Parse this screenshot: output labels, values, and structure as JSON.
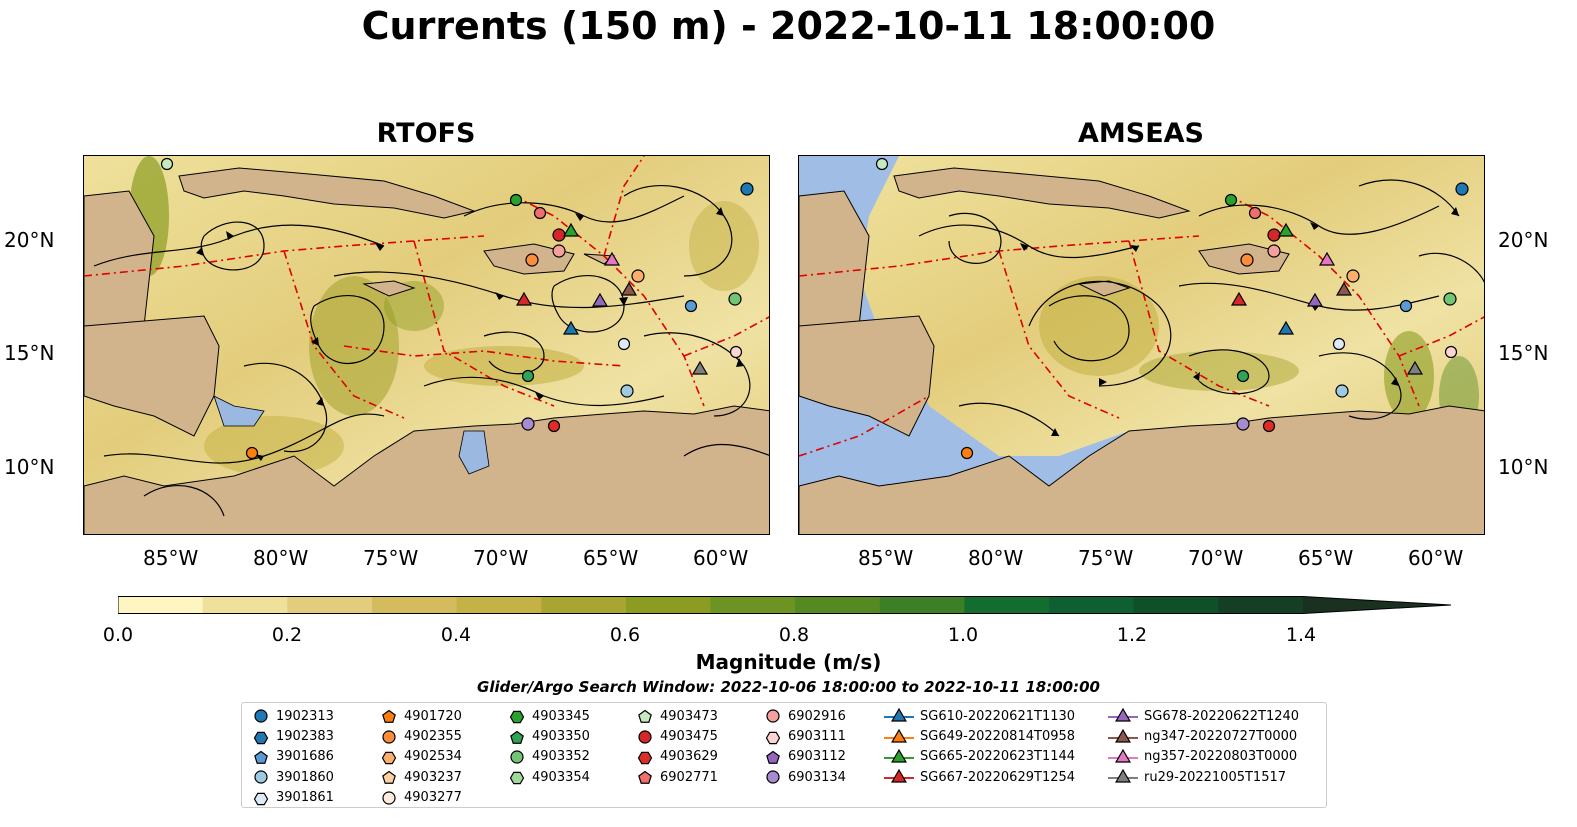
{
  "title": "Currents (150 m) - 2022-10-11 18:00:00",
  "panels": [
    {
      "title": "RTOFS"
    },
    {
      "title": "AMSEAS"
    }
  ],
  "map": {
    "lon_ticks": [
      "85°W",
      "80°W",
      "75°W",
      "70°W",
      "65°W",
      "60°W"
    ],
    "lat_ticks": [
      "20°N",
      "15°N",
      "10°N"
    ],
    "colors": {
      "land": "#d2b48c",
      "ocean_outside": "#a0bde6",
      "boundary": "#e00000"
    }
  },
  "colorbar": {
    "label": "Magnitude (m/s)",
    "ticks": [
      "0.0",
      "0.2",
      "0.4",
      "0.6",
      "0.8",
      "1.0",
      "1.2",
      "1.4"
    ],
    "colors": [
      "#fdf6c3",
      "#efe19c",
      "#e3cd7c",
      "#d4bb5d",
      "#c4b246",
      "#a9a532",
      "#8c9c22",
      "#6d9422",
      "#558a22",
      "#3c7f24",
      "#126d2f",
      "#0f5f33",
      "#0f502b",
      "#153f25",
      "#1a3020",
      "#1a2a17"
    ]
  },
  "search_window": "Glider/Argo Search Window: 2022-10-06 18:00:00 to 2022-10-11 18:00:00",
  "legend": {
    "columns": [
      [
        {
          "label": "1902313",
          "marker": "circle",
          "color": "#1f77b4"
        },
        {
          "label": "1902383",
          "marker": "hexagon",
          "color": "#1f77b4"
        },
        {
          "label": "3901686",
          "marker": "pentagon",
          "color": "#5b9bd5"
        },
        {
          "label": "3901860",
          "marker": "circle",
          "color": "#9ecae1"
        },
        {
          "label": "3901861",
          "marker": "hexagon",
          "color": "#deebf7"
        }
      ],
      [
        {
          "label": "4901720",
          "marker": "pentagon",
          "color": "#ff7f0e"
        },
        {
          "label": "4902355",
          "marker": "circle",
          "color": "#fd8d3c"
        },
        {
          "label": "4902534",
          "marker": "hexagon",
          "color": "#fdae6b"
        },
        {
          "label": "4903237",
          "marker": "pentagon",
          "color": "#fdd0a2"
        },
        {
          "label": "4903277",
          "marker": "circle",
          "color": "#feedde"
        }
      ],
      [
        {
          "label": "4903345",
          "marker": "hexagon",
          "color": "#2ca02c"
        },
        {
          "label": "4903350",
          "marker": "pentagon",
          "color": "#31a354"
        },
        {
          "label": "4903352",
          "marker": "circle",
          "color": "#74c476"
        },
        {
          "label": "4903354",
          "marker": "hexagon",
          "color": "#a1d99b"
        }
      ],
      [
        {
          "label": "4903473",
          "marker": "pentagon",
          "color": "#c7e9c0"
        },
        {
          "label": "4903475",
          "marker": "circle",
          "color": "#d62728"
        },
        {
          "label": "4903629",
          "marker": "hexagon",
          "color": "#de2d26"
        },
        {
          "label": "6902771",
          "marker": "pentagon",
          "color": "#ef6f6c"
        }
      ],
      [
        {
          "label": "6902916",
          "marker": "circle",
          "color": "#f4a09c"
        },
        {
          "label": "6903111",
          "marker": "hexagon",
          "color": "#fcd5d3"
        },
        {
          "label": "6903112",
          "marker": "pentagon",
          "color": "#9467bd"
        },
        {
          "label": "6903134",
          "marker": "circle",
          "color": "#a68bcf"
        }
      ],
      [
        {
          "label": "SG610-20220621T1130",
          "marker": "triangle",
          "color": "#1f77b4"
        },
        {
          "label": "SG649-20220814T0958",
          "marker": "triangle",
          "color": "#ff7f0e"
        },
        {
          "label": "SG665-20220623T1144",
          "marker": "triangle",
          "color": "#2ca02c"
        },
        {
          "label": "SG667-20220629T1254",
          "marker": "triangle",
          "color": "#d62728"
        }
      ],
      [
        {
          "label": "SG678-20220622T1240",
          "marker": "triangle",
          "color": "#9467bd"
        },
        {
          "label": "ng347-20220727T0000",
          "marker": "triangle",
          "color": "#8c564b"
        },
        {
          "label": "ng357-20220803T0000",
          "marker": "triangle",
          "color": "#e377c2"
        },
        {
          "label": "ru29-20221005T1517",
          "marker": "triangle",
          "color": "#7f7f7f"
        }
      ]
    ]
  }
}
